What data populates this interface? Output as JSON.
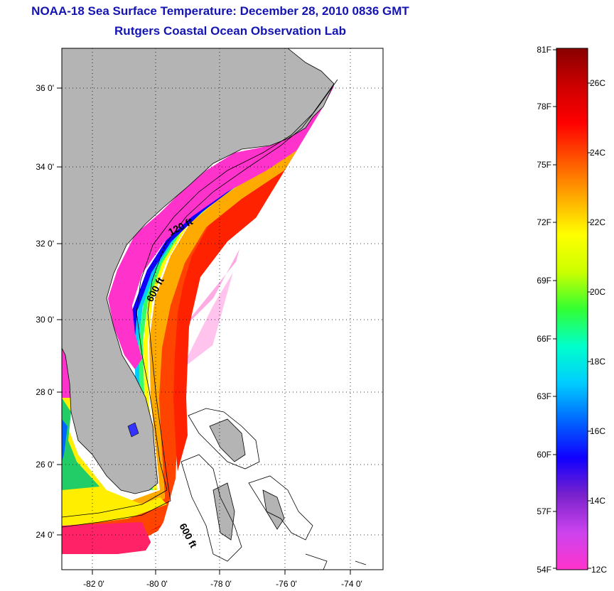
{
  "title": {
    "line1": "NOAA-18 Sea Surface Temperature:  December 28, 2010 0836 GMT",
    "line2": "Rutgers Coastal Ocean Observation Lab"
  },
  "map": {
    "lat_ticks": [
      "36 0'",
      "34 0'",
      "32 0'",
      "30 0'",
      "28 0'",
      "26 0'",
      "24 0'"
    ],
    "lon_ticks": [
      "-82 0'",
      "-80 0'",
      "-78 0'",
      "-76 0'",
      "-74 0'"
    ],
    "contour_labels": [
      "120 ft",
      "600 ft",
      "600 ft"
    ],
    "colors": {
      "land": "#b4b4b4",
      "ocean_no_data": "#ffffff",
      "grid": "#000000"
    }
  },
  "colorbar": {
    "fahrenheit_labels": [
      "81F",
      "78F",
      "75F",
      "72F",
      "69F",
      "66F",
      "63F",
      "60F",
      "57F",
      "54F"
    ],
    "celsius_labels": [
      "26C",
      "24C",
      "22C",
      "20C",
      "18C",
      "16C",
      "14C",
      "12C"
    ],
    "gradient_stops": [
      "#ff33cc",
      "#cc44ee",
      "#7a22cc",
      "#1100ff",
      "#0066ff",
      "#00ccff",
      "#00ffcc",
      "#33ff33",
      "#ccff00",
      "#ffff00",
      "#ffaa00",
      "#ff5500",
      "#ff0000",
      "#cc0000",
      "#880000"
    ]
  }
}
